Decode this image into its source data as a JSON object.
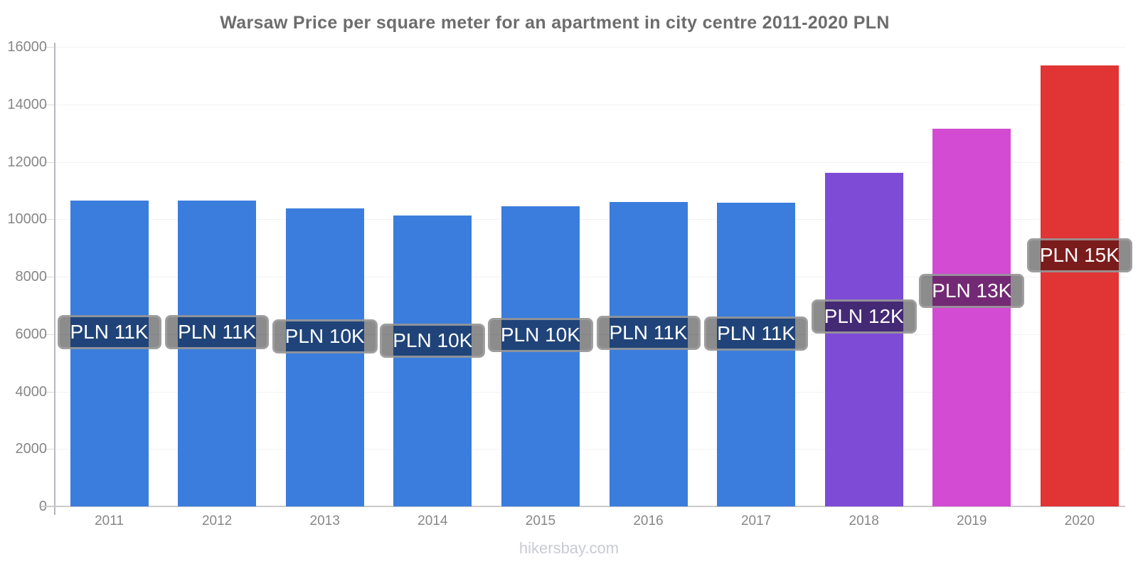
{
  "page": {
    "footer": "hikersbay.com"
  },
  "chart_data": {
    "type": "bar",
    "title": "Warsaw Price per square meter for an apartment in city centre 2011-2020 PLN",
    "xlabel": "",
    "ylabel": "",
    "categories": [
      "2011",
      "2012",
      "2013",
      "2014",
      "2015",
      "2016",
      "2017",
      "2018",
      "2019",
      "2020"
    ],
    "values": [
      10660,
      10650,
      10380,
      10120,
      10460,
      10610,
      10570,
      11620,
      13150,
      15360
    ],
    "bar_labels": [
      "PLN 11K",
      "PLN 11K",
      "PLN 10K",
      "PLN 10K",
      "PLN 10K",
      "PLN 11K",
      "PLN 11K",
      "PLN 12K",
      "PLN 13K",
      "PLN 15K"
    ],
    "bar_colors": [
      "#3B7DDD",
      "#3B7DDD",
      "#3B7DDD",
      "#3B7DDD",
      "#3B7DDD",
      "#3B7DDD",
      "#3B7DDD",
      "#7D4BD6",
      "#D24BD2",
      "#E13434"
    ],
    "ylim": [
      0,
      16000
    ],
    "yticks": [
      0,
      2000,
      4000,
      6000,
      8000,
      10000,
      12000,
      14000,
      16000
    ],
    "grid": "horizontal-faint",
    "legend": "none",
    "colors": {
      "title_text": "#6d6d6d",
      "axis_text": "#878787",
      "axis_line": "#b6b6c0",
      "baseline": "#cbcbcb",
      "gridline": "#f2f2f2",
      "label_text": "#ffffff",
      "label_bg": "rgba(0,0,0,0.45)",
      "label_border": "rgba(160,160,160,0.85)",
      "footer_text": "#c9cad4"
    }
  }
}
